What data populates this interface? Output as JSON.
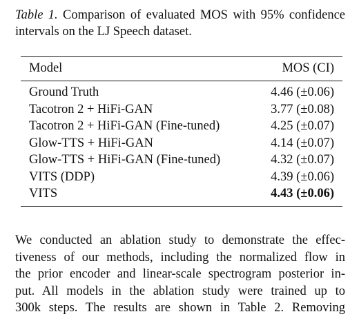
{
  "caption": {
    "label": "Table 1.",
    "text": " Comparison of evaluated MOS with 95% confidence intervals on the LJ Speech dataset."
  },
  "table": {
    "headers": {
      "model": "Model",
      "mos": "MOS (CI)"
    },
    "rows": [
      {
        "model": "Ground Truth",
        "mos": "4.46 (±0.06)",
        "bold": false
      },
      {
        "model": "Tacotron 2 + HiFi-GAN",
        "mos": "3.77 (±0.08)",
        "bold": false
      },
      {
        "model": "Tacotron 2 + HiFi-GAN (Fine-tuned)",
        "mos": "4.25 (±0.07)",
        "bold": false
      },
      {
        "model": "Glow-TTS + HiFi-GAN",
        "mos": "4.14 (±0.07)",
        "bold": false
      },
      {
        "model": "Glow-TTS + HiFi-GAN (Fine-tuned)",
        "mos": "4.32 (±0.07)",
        "bold": false
      },
      {
        "model": "VITS (DDP)",
        "mos": "4.39 (±0.06)",
        "bold": false
      },
      {
        "model": "VITS",
        "mos": "4.43 (±0.06)",
        "bold": true
      }
    ]
  },
  "body": {
    "lines": [
      "We conducted an ablation study to demonstrate the effec-",
      "tiveness of our methods, including the normalized flow in",
      "the prior encoder and linear-scale spectrogram posterior in-",
      "put. All models in the ablation study were trained up to",
      "300k steps. The results are shown in Table 2. Removing"
    ]
  }
}
